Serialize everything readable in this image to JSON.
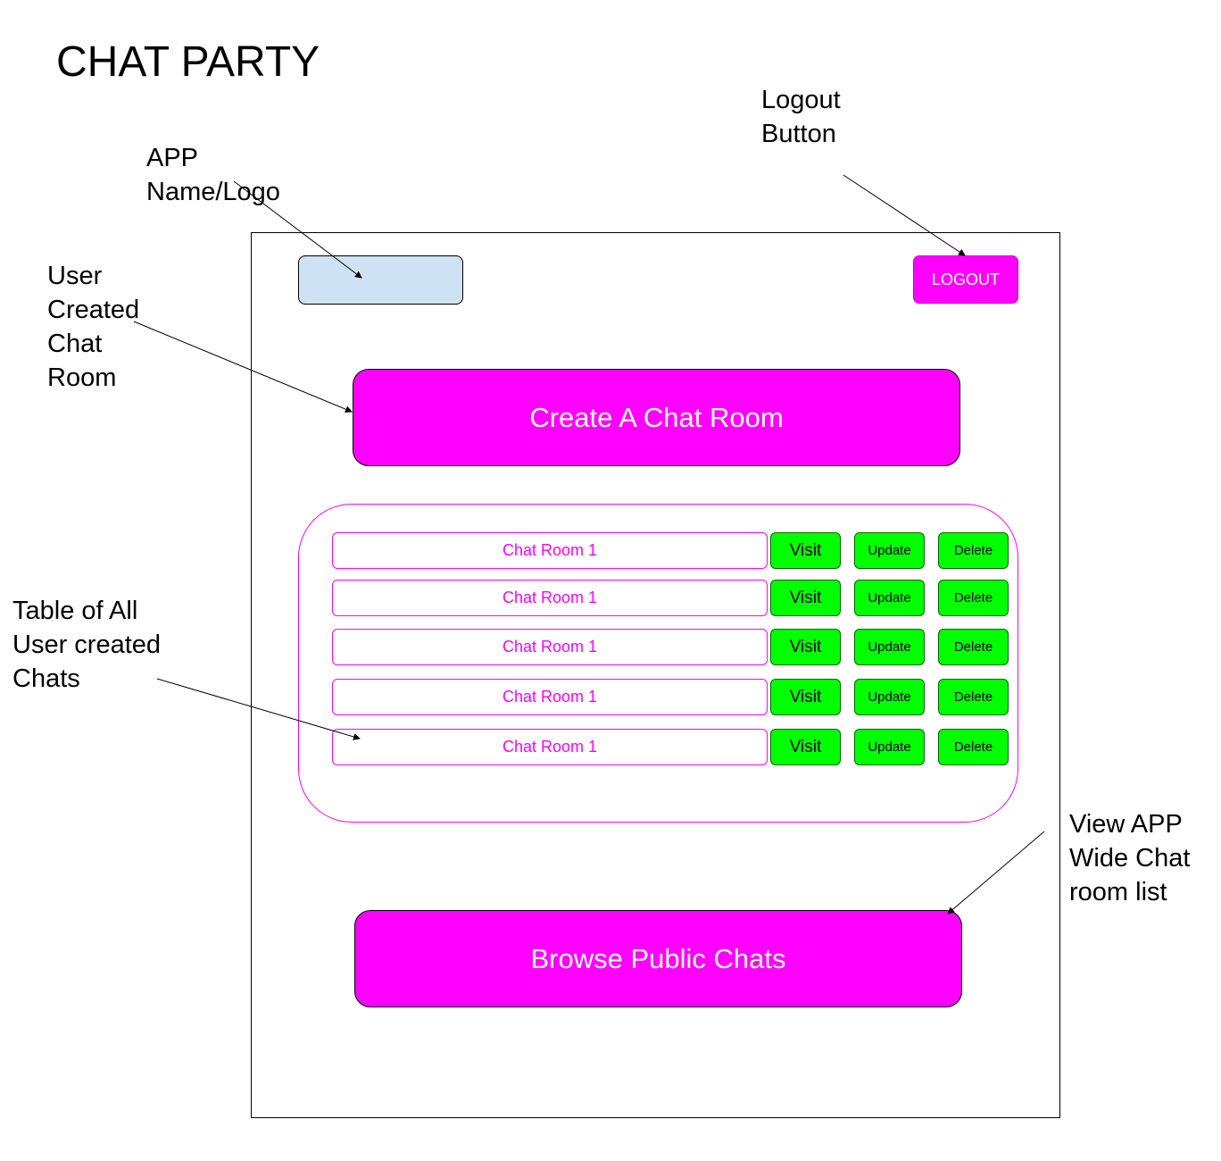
{
  "heading": "CHAT PARTY",
  "annotations": {
    "logo": "APP\nName/Logo",
    "logout": "Logout\nButton",
    "create": "User\nCreated\nChat\nRoom",
    "table": "Table of All\nUser created\nChats",
    "browse": "View APP\nWide Chat\nroom list"
  },
  "app": {
    "logout_label": "LOGOUT",
    "create_label": "Create A Chat Room",
    "browse_label": "Browse Public Chats",
    "rooms": [
      {
        "name": "Chat Room 1",
        "visit": "Visit",
        "update": "Update",
        "delete": "Delete"
      },
      {
        "name": "Chat Room 1",
        "visit": "Visit",
        "update": "Update",
        "delete": "Delete"
      },
      {
        "name": "Chat Room 1",
        "visit": "Visit",
        "update": "Update",
        "delete": "Delete"
      },
      {
        "name": "Chat Room 1",
        "visit": "Visit",
        "update": "Update",
        "delete": "Delete"
      },
      {
        "name": "Chat Room 1",
        "visit": "Visit",
        "update": "Update",
        "delete": "Delete"
      }
    ]
  },
  "colors": {
    "accent_magenta": "#ff00ff",
    "action_green": "#00ff00",
    "logo_placeholder": "#cfe2f3"
  }
}
